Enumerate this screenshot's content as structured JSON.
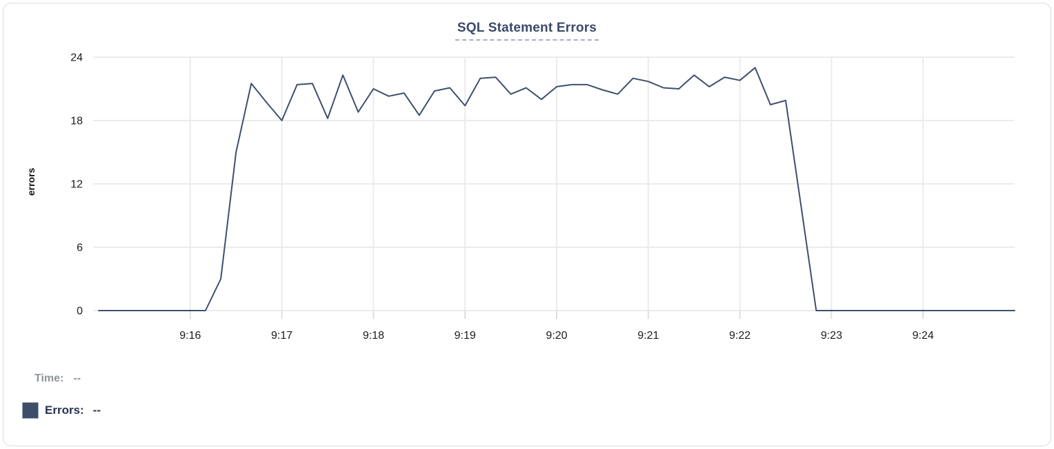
{
  "chart_data": {
    "type": "line",
    "title": "SQL Statement Errors",
    "xlabel": "",
    "ylabel": "errors",
    "ylim": [
      0,
      24
    ],
    "yticks": [
      0,
      6,
      12,
      18,
      24
    ],
    "xticks": [
      "9:16",
      "9:17",
      "9:18",
      "9:19",
      "9:20",
      "9:21",
      "9:22",
      "9:23",
      "9:24"
    ],
    "grid": true,
    "legend_position": "none",
    "line_color": "#3e4e6d",
    "axis_text_color": "#1b1b1b",
    "grid_color": "#ebebeb",
    "series": [
      {
        "name": "Errors",
        "x": [
          "9:15:00",
          "9:15:10",
          "9:15:20",
          "9:15:30",
          "9:15:40",
          "9:15:50",
          "9:16:00",
          "9:16:10",
          "9:16:20",
          "9:16:30",
          "9:16:40",
          "9:16:50",
          "9:17:00",
          "9:17:10",
          "9:17:20",
          "9:17:30",
          "9:17:40",
          "9:17:50",
          "9:18:00",
          "9:18:10",
          "9:18:20",
          "9:18:30",
          "9:18:40",
          "9:18:50",
          "9:19:00",
          "9:19:10",
          "9:19:20",
          "9:19:30",
          "9:19:40",
          "9:19:50",
          "9:20:00",
          "9:20:10",
          "9:20:20",
          "9:20:30",
          "9:20:40",
          "9:20:50",
          "9:21:00",
          "9:21:10",
          "9:21:20",
          "9:21:30",
          "9:21:40",
          "9:21:50",
          "9:22:00",
          "9:22:10",
          "9:22:20",
          "9:22:30",
          "9:22:40",
          "9:22:50",
          "9:23:00",
          "9:23:10",
          "9:23:20",
          "9:23:30",
          "9:23:40",
          "9:23:50",
          "9:24:00",
          "9:24:10",
          "9:24:20",
          "9:24:30",
          "9:24:40",
          "9:24:50",
          "9:25:00"
        ],
        "values": [
          0,
          0,
          0,
          0,
          0,
          0,
          0,
          0,
          3,
          15,
          21.5,
          19.7,
          18,
          21.4,
          21.5,
          18.2,
          22.3,
          18.8,
          21,
          20.3,
          20.6,
          18.5,
          20.8,
          21.1,
          19.4,
          22,
          22.1,
          20.5,
          21.1,
          20,
          21.2,
          21.4,
          21.4,
          20.9,
          20.5,
          22,
          21.7,
          21.1,
          21,
          22.3,
          21.2,
          22.1,
          21.8,
          23,
          19.5,
          19.9,
          10,
          0,
          0,
          0,
          0,
          0,
          0,
          0,
          0,
          0,
          0,
          0,
          0,
          0,
          0
        ]
      }
    ]
  },
  "readout": {
    "time_label": "Time:",
    "time_value": "--",
    "errors_label": "Errors:",
    "errors_value": "--",
    "swatch_color": "#3e4d68"
  }
}
